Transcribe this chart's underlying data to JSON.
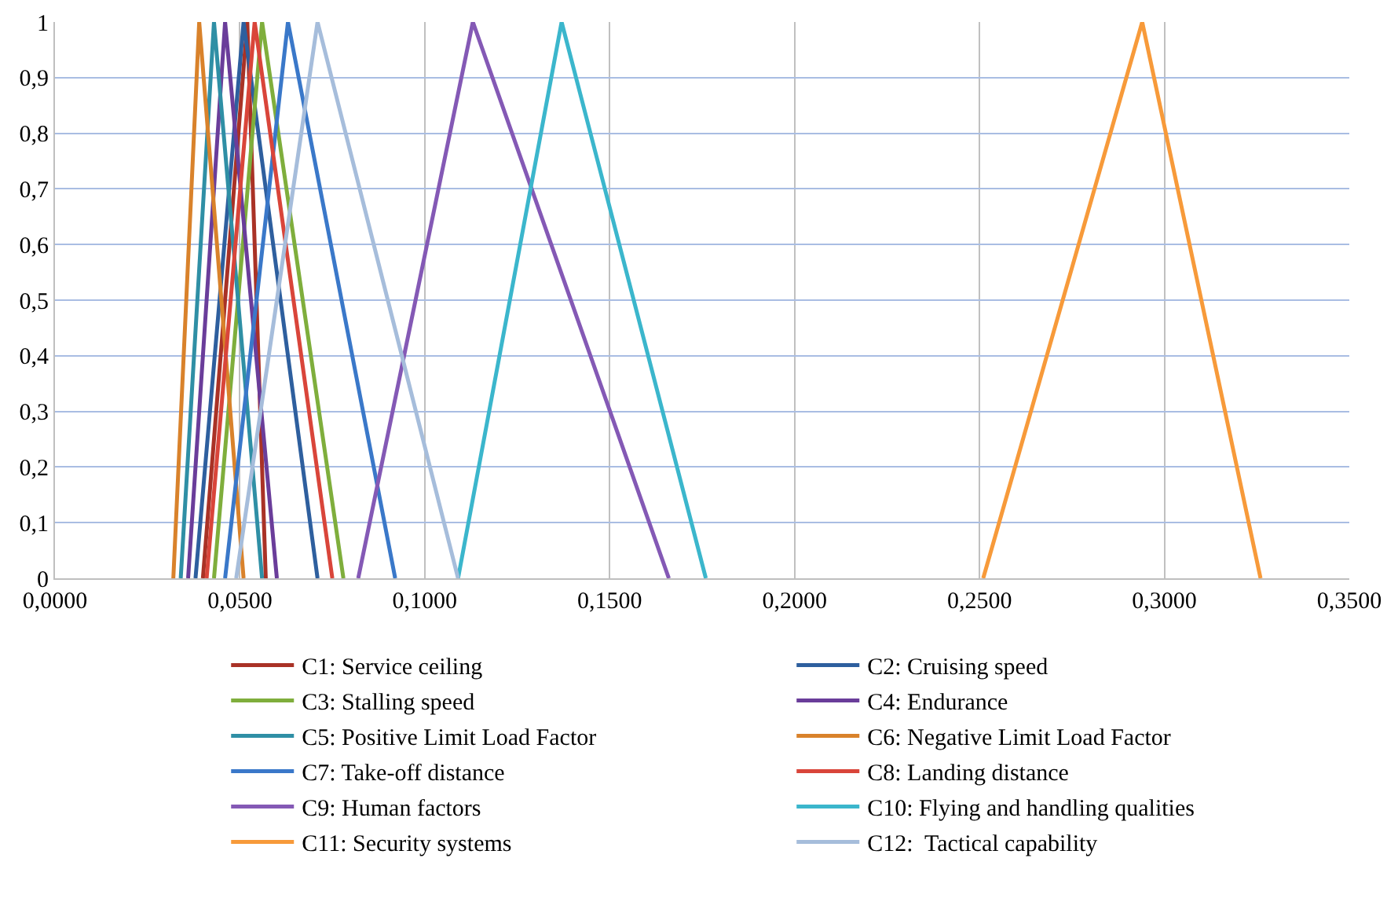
{
  "chart_data": {
    "type": "line",
    "xlim": [
      0,
      0.35
    ],
    "ylim": [
      0,
      1
    ],
    "xticks": [
      {
        "value": 0,
        "label": "0,0000"
      },
      {
        "value": 0.05,
        "label": "0,0500"
      },
      {
        "value": 0.1,
        "label": "0,1000"
      },
      {
        "value": 0.15,
        "label": "0,1500"
      },
      {
        "value": 0.2,
        "label": "0,2000"
      },
      {
        "value": 0.25,
        "label": "0,2500"
      },
      {
        "value": 0.3,
        "label": "0,3000"
      },
      {
        "value": 0.35,
        "label": "0,3500"
      }
    ],
    "yticks": [
      0,
      {
        "value": 0.1,
        "label": "0,1"
      },
      {
        "value": 0.2,
        "label": "0,2"
      },
      {
        "value": 0.3,
        "label": "0,3"
      },
      {
        "value": 0.4,
        "label": "0,4"
      },
      {
        "value": 0.5,
        "label": "0,5"
      },
      {
        "value": 0.6,
        "label": "0,6"
      },
      {
        "value": 0.7,
        "label": "0,7"
      },
      {
        "value": 0.8,
        "label": "0,8"
      },
      {
        "value": 0.9,
        "label": "0,9"
      },
      1
    ],
    "grid": true,
    "legend": "bottom",
    "marker": "none",
    "line_style": "solid",
    "series": [
      {
        "name": "C1: Service ceiling",
        "color": "#a93226",
        "x": [
          0.04,
          0.052,
          0.057
        ],
        "values": [
          0,
          1,
          0
        ]
      },
      {
        "name": "C2: Cruising speed",
        "color": "#2e5f9e",
        "x": [
          0.038,
          0.051,
          0.071
        ],
        "values": [
          0,
          1,
          0
        ]
      },
      {
        "name": "C3: Stalling speed",
        "color": "#7fae3c",
        "x": [
          0.043,
          0.056,
          0.078
        ],
        "values": [
          0,
          1,
          0
        ]
      },
      {
        "name": "C4: Endurance",
        "color": "#6a3d9a",
        "x": [
          0.036,
          0.046,
          0.06
        ],
        "values": [
          0,
          1,
          0
        ]
      },
      {
        "name": "C5: Positive Limit Load Factor",
        "color": "#2f8fa5",
        "x": [
          0.034,
          0.043,
          0.056
        ],
        "values": [
          0,
          1,
          0
        ]
      },
      {
        "name": "C6: Negative Limit Load Factor",
        "color": "#d9822b",
        "x": [
          0.032,
          0.039,
          0.051
        ],
        "values": [
          0,
          1,
          0
        ]
      },
      {
        "name": "C7: Take-off distance",
        "color": "#3a78c9",
        "x": [
          0.046,
          0.063,
          0.092
        ],
        "values": [
          0,
          1,
          0
        ]
      },
      {
        "name": "C8: Landing distance",
        "color": "#d9453a",
        "x": [
          0.041,
          0.054,
          0.075
        ],
        "values": [
          0,
          1,
          0
        ]
      },
      {
        "name": "C9: Human factors",
        "color": "#8459b5",
        "x": [
          0.082,
          0.113,
          0.166
        ],
        "values": [
          0,
          1,
          0
        ]
      },
      {
        "name": "C10: Flying and handling qualities",
        "color": "#3bb6cc",
        "x": [
          0.109,
          0.137,
          0.176
        ],
        "values": [
          0,
          1,
          0
        ]
      },
      {
        "name": "C11: Security systems",
        "color": "#f79a3a",
        "x": [
          0.251,
          0.294,
          0.326
        ],
        "values": [
          0,
          1,
          0
        ]
      },
      {
        "name": "C12:  Tactical capability",
        "color": "#a6bddb",
        "x": [
          0.049,
          0.071,
          0.109
        ],
        "values": [
          0,
          1,
          0
        ]
      }
    ]
  }
}
